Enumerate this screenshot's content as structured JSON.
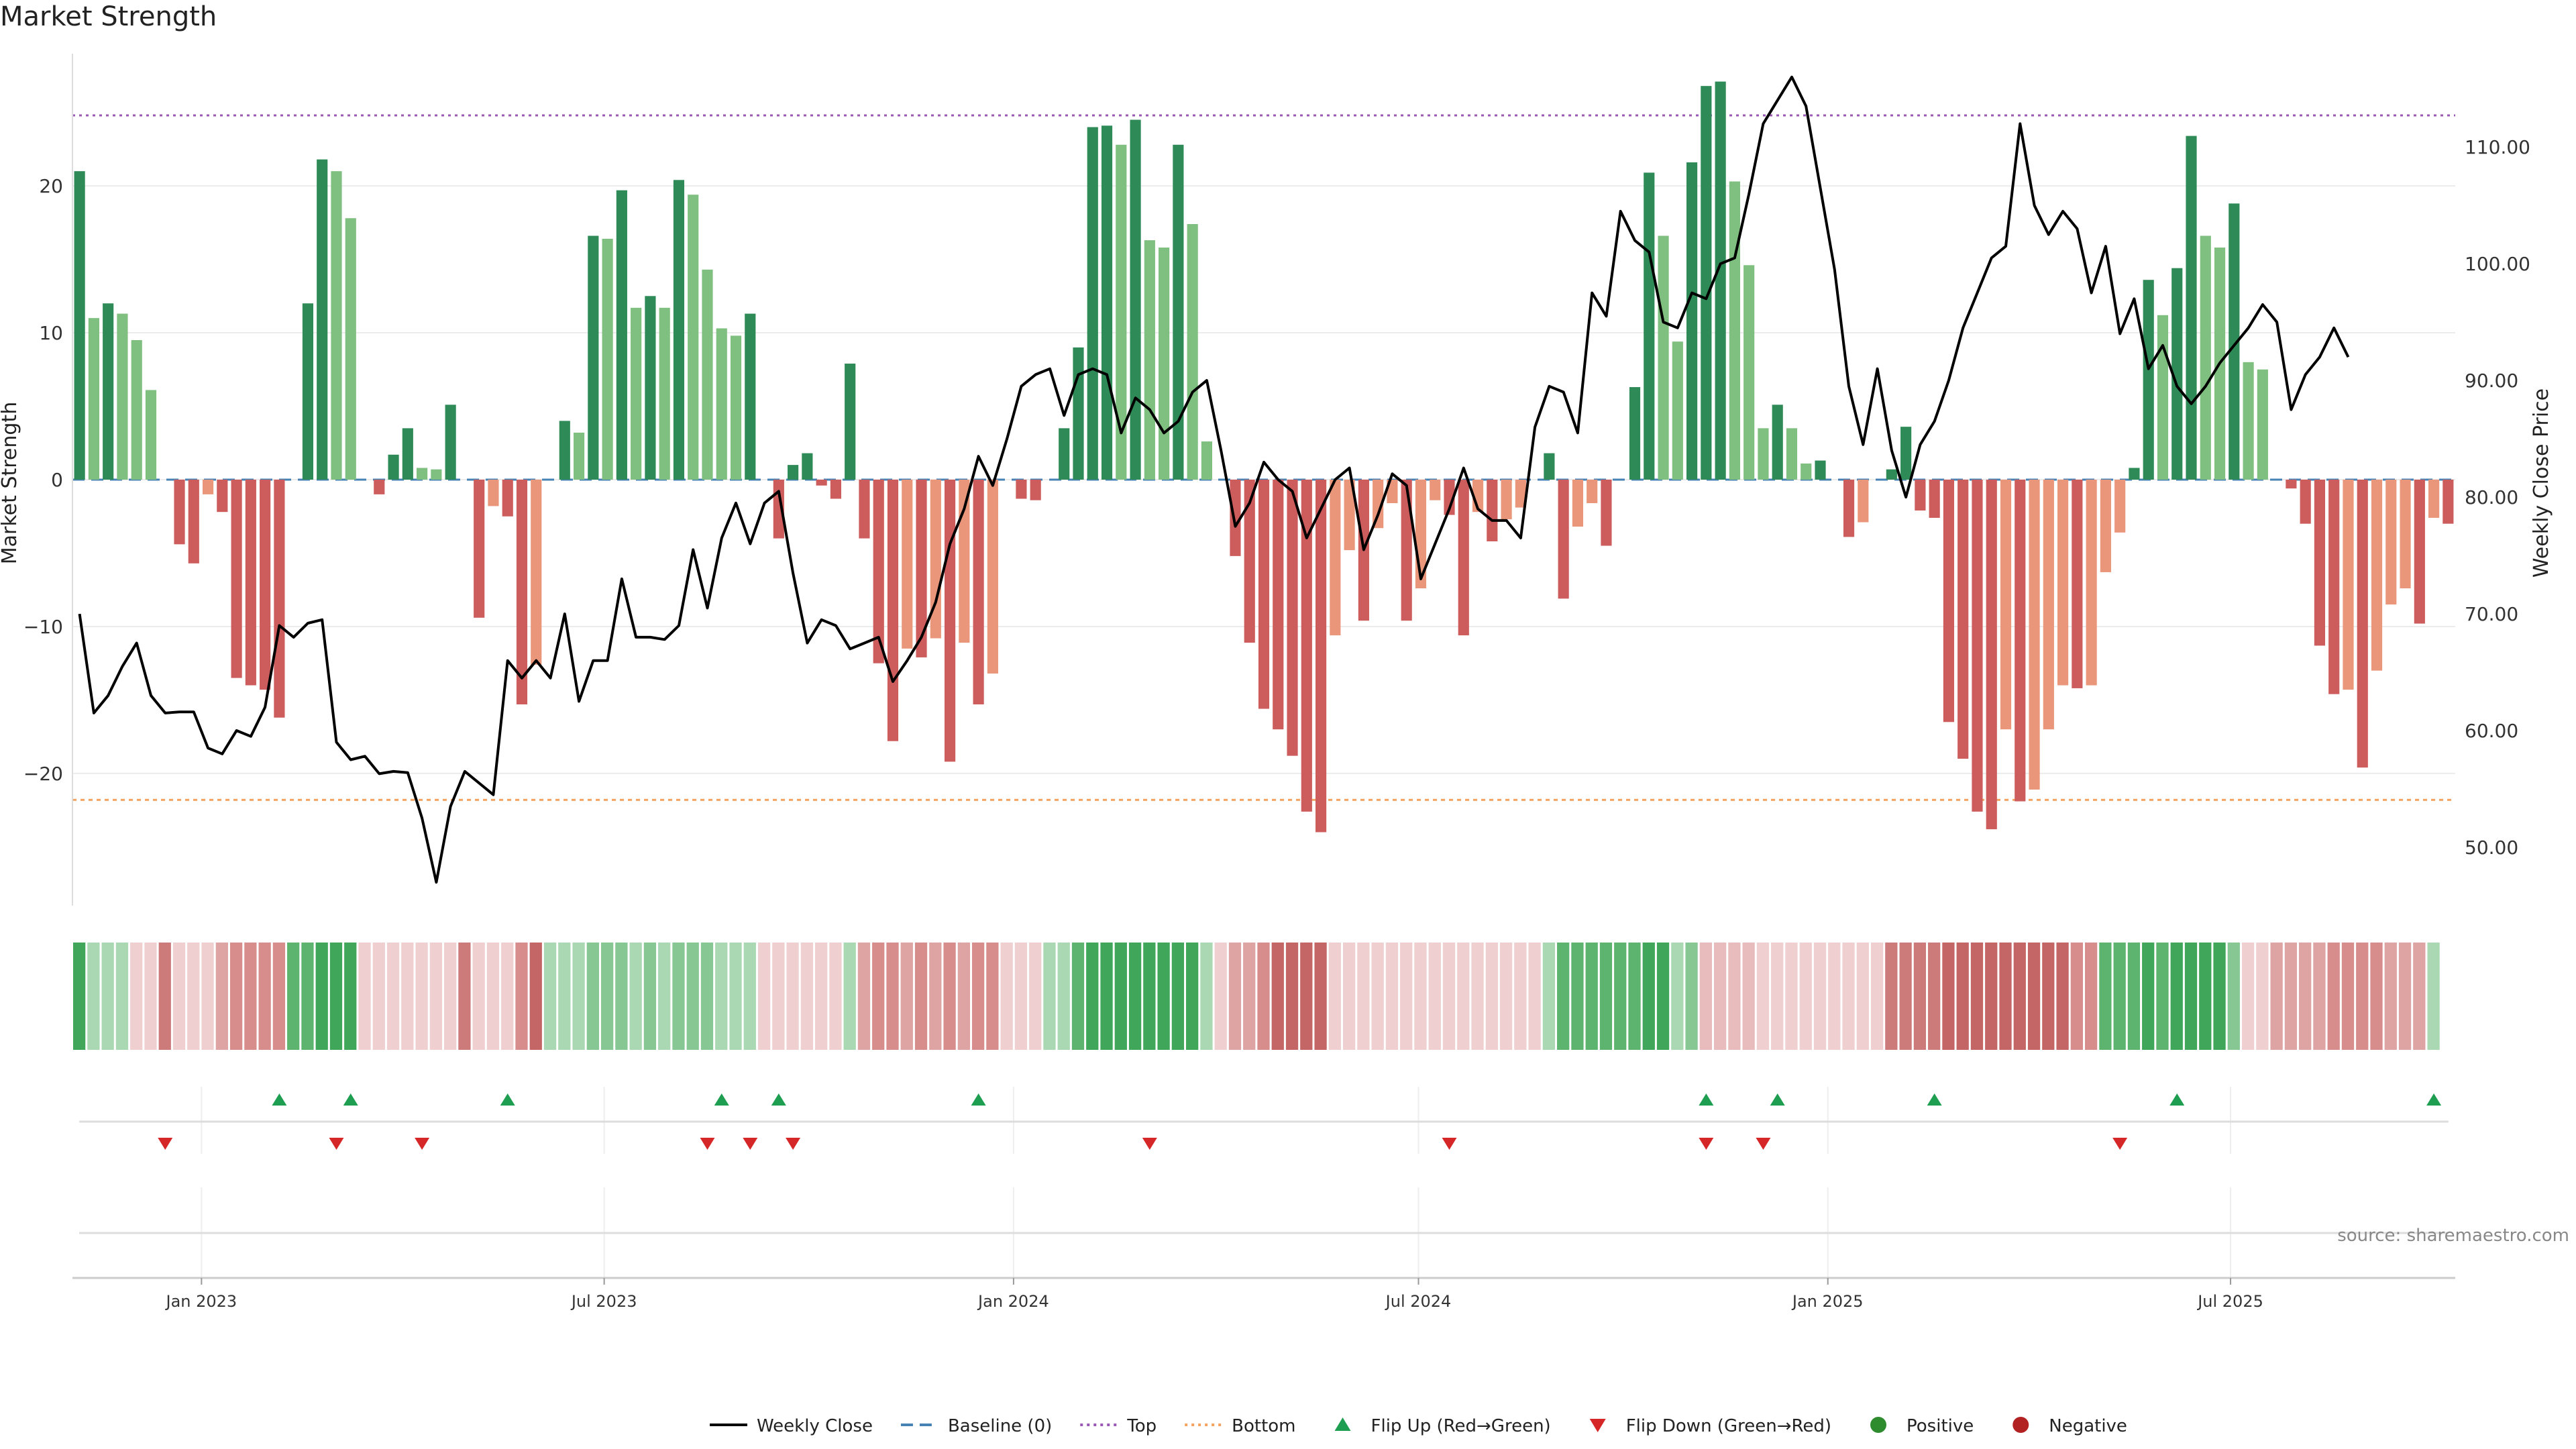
{
  "title": "Market Strength",
  "source": "source: sharemaestro.com",
  "colors": {
    "strong_green": "#2e8b57",
    "light_green": "#7fbf7f",
    "strong_red": "#cd5c5c",
    "light_red": "#e9967a",
    "top_line": "#9b59b6",
    "bottom_line": "#f4a460",
    "baseline": "#4682b4",
    "price_line": "#000000",
    "flip_up": "#1e9e50",
    "flip_down": "#d62728",
    "positive": "#2e8b2e",
    "negative": "#b22222"
  },
  "legend": [
    {
      "label": "Weekly Close",
      "kind": "line",
      "color": "#000000"
    },
    {
      "label": "Baseline (0)",
      "kind": "dash",
      "color": "#4682b4"
    },
    {
      "label": "Top",
      "kind": "dot",
      "color": "#9b59b6"
    },
    {
      "label": "Bottom",
      "kind": "dot",
      "color": "#f4a460"
    },
    {
      "label": "Flip Up (Red→Green)",
      "kind": "tri-up",
      "color": "#1e9e50"
    },
    {
      "label": "Flip Down (Green→Red)",
      "kind": "tri-down",
      "color": "#d62728"
    },
    {
      "label": "Positive",
      "kind": "dot-fill",
      "color": "#2e8b2e"
    },
    {
      "label": "Negative",
      "kind": "dot-fill",
      "color": "#b22222"
    }
  ],
  "chart_data": {
    "type": "bar",
    "title": "Market Strength",
    "ylabel": "Market Strength",
    "y2label": "Weekly Close Price",
    "ylim": [
      -29,
      29
    ],
    "y2lim": [
      45,
      118
    ],
    "yticks": [
      -20,
      -10,
      0,
      10,
      20
    ],
    "y2ticks": [
      50,
      60,
      70,
      80,
      90,
      100,
      110
    ],
    "y2tick_labels": [
      "50.00",
      "60.00",
      "70.00",
      "80.00",
      "90.00",
      "100.00",
      "110.00"
    ],
    "x_start": "2022-11-04",
    "x_end": "2025-10-10",
    "xticks": [
      {
        "date": "2023-01-01",
        "label": "Jan 2023"
      },
      {
        "date": "2023-07-01",
        "label": "Jul 2023"
      },
      {
        "date": "2024-01-01",
        "label": "Jan 2024"
      },
      {
        "date": "2024-07-01",
        "label": "Jul 2024"
      },
      {
        "date": "2025-01-01",
        "label": "Jan 2025"
      },
      {
        "date": "2025-07-01",
        "label": "Jul 2025"
      }
    ],
    "top_level": 24.8,
    "bottom_level": -21.8,
    "strength": [
      21,
      11,
      12,
      11.3,
      9.5,
      6.1,
      0,
      -4.4,
      -5.7,
      -1,
      -2.2,
      -13.5,
      -14,
      -14.3,
      -16.2,
      0,
      12,
      21.8,
      21,
      17.8,
      0,
      -1,
      1.7,
      3.5,
      0.8,
      0.7,
      5.1,
      0,
      -9.4,
      -1.8,
      -2.5,
      -15.3,
      -12.6,
      0,
      4,
      3.2,
      16.6,
      16.4,
      19.7,
      11.7,
      12.5,
      11.7,
      20.4,
      19.4,
      14.3,
      10.3,
      9.8,
      11.3,
      0,
      -4,
      1,
      1.8,
      -0.4,
      -1.3,
      7.9,
      -4,
      -12.5,
      -17.8,
      -11.5,
      -12.1,
      -10.8,
      -19.2,
      -11.1,
      -15.3,
      -13.2,
      0,
      -1.3,
      -1.4,
      0,
      3.5,
      9,
      24,
      24.1,
      22.8,
      24.5,
      16.3,
      15.8,
      22.8,
      17.4,
      2.6,
      0,
      -5.2,
      -11.1,
      -15.6,
      -17,
      -18.8,
      -22.6,
      -24,
      -10.6,
      -4.8,
      -9.6,
      -3.3,
      -1.6,
      -9.6,
      -7.4,
      -1.4,
      -2.4,
      -10.6,
      -2.2,
      -4.2,
      -2.7,
      -1.9,
      0,
      1.8,
      -8.1,
      -3.2,
      -1.6,
      -4.5,
      0,
      6.3,
      20.9,
      16.6,
      9.4,
      21.6,
      26.8,
      27.1,
      20.3,
      14.6,
      3.5,
      5.1,
      3.5,
      1.1,
      1.3,
      0,
      -3.9,
      -2.9,
      0,
      0.7,
      3.6,
      -2.1,
      -2.6,
      -16.5,
      -19,
      -22.6,
      -23.8,
      -17,
      -21.9,
      -21.1,
      -17,
      -14,
      -14.2,
      -14,
      -6.3,
      -3.6,
      0.8,
      13.6,
      11.2,
      14.4,
      23.4,
      16.6,
      15.8,
      18.8,
      8,
      7.5,
      0,
      -0.6,
      -3,
      -11.3,
      -14.6,
      -14.3,
      -19.6,
      -13,
      -8.5,
      -7.4,
      -9.8,
      -2.6,
      -3
    ],
    "price": [
      70,
      61.5,
      63,
      65.5,
      67.5,
      63,
      61.5,
      61.6,
      61.6,
      58.5,
      58,
      60,
      59.5,
      62,
      69,
      68,
      69.2,
      69.5,
      59,
      57.5,
      57.8,
      56.3,
      56.5,
      56.4,
      52.5,
      47,
      53.5,
      56.5,
      55.5,
      54.5,
      66,
      64.5,
      66,
      64.5,
      70,
      62.5,
      66,
      66,
      73,
      68,
      68,
      67.8,
      69,
      75.5,
      70.5,
      76.5,
      79.5,
      76,
      79.5,
      80.5,
      73.5,
      67.5,
      69.5,
      69,
      67,
      67.5,
      68,
      64.2,
      66,
      68,
      71,
      76,
      79,
      83.5,
      81,
      85,
      89.5,
      90.5,
      91,
      87,
      90.5,
      91,
      90.5,
      85.5,
      88.5,
      87.5,
      85.5,
      86.5,
      89,
      90,
      84,
      77.5,
      79.5,
      83,
      81.5,
      80.5,
      76.5,
      79,
      81.5,
      82.5,
      75.5,
      78.5,
      82,
      81,
      73,
      76,
      79,
      82.5,
      79,
      78,
      78,
      76.5,
      86,
      89.5,
      89,
      85.5,
      97.5,
      95.5,
      104.5,
      102,
      101,
      95,
      94.5,
      97.5,
      97,
      100,
      100.5,
      106,
      112,
      114,
      116,
      113.5,
      106.5,
      99.5,
      89.5,
      84.5,
      91,
      84,
      80,
      84.5,
      86.5,
      90,
      94.5,
      97.5,
      100.5,
      101.5,
      112,
      105,
      102.5,
      104.5,
      103,
      97.5,
      101.5,
      94,
      97,
      91,
      93,
      89.5,
      88,
      89.5,
      91.5,
      93,
      94.5,
      96.5,
      95,
      87.5,
      90.5,
      92,
      94.5,
      92
    ],
    "heat": [
      "G",
      "g",
      "g",
      "g",
      "p",
      "p",
      "R",
      "p",
      "p",
      "p",
      "r",
      "r",
      "r",
      "r",
      "r",
      "G",
      "G",
      "G",
      "G",
      "G",
      "p",
      "p",
      "p",
      "p",
      "p",
      "p",
      "p",
      "R",
      "p",
      "p",
      "p",
      "r",
      "R",
      "g",
      "g",
      "g",
      "g",
      "g",
      "g",
      "g",
      "g",
      "g",
      "g",
      "g",
      "g",
      "g",
      "g",
      "g",
      "p",
      "p",
      "p",
      "p",
      "p",
      "p",
      "g",
      "r",
      "r",
      "r",
      "r",
      "r",
      "r",
      "r",
      "r",
      "r",
      "r",
      "p",
      "p",
      "p",
      "g",
      "g",
      "G",
      "G",
      "G",
      "G",
      "G",
      "G",
      "G",
      "G",
      "G",
      "g",
      "p",
      "r",
      "r",
      "r",
      "R",
      "R",
      "R",
      "R",
      "p",
      "p",
      "p",
      "p",
      "p",
      "p",
      "p",
      "p",
      "p",
      "p",
      "p",
      "p",
      "p",
      "p",
      "p",
      "g",
      "G",
      "G",
      "G",
      "G",
      "G",
      "G",
      "G",
      "G",
      "g",
      "g",
      "p",
      "p",
      "p",
      "p",
      "p",
      "p",
      "p",
      "p",
      "p",
      "p",
      "p",
      "p",
      "p",
      "R",
      "R",
      "R",
      "R",
      "R",
      "R",
      "R",
      "R",
      "R",
      "R",
      "R",
      "R",
      "R",
      "r",
      "r",
      "G",
      "G",
      "G",
      "G",
      "G",
      "G",
      "G",
      "G",
      "G",
      "g",
      "p",
      "p",
      "r",
      "r",
      "r",
      "r",
      "r",
      "r",
      "r",
      "r",
      "r",
      "r",
      "r",
      "g"
    ],
    "flip_up_weeks": [
      14,
      19,
      30,
      45,
      49,
      63,
      114,
      119,
      130,
      147,
      165
    ],
    "flip_down_weeks": [
      6,
      18,
      24,
      44,
      47,
      50,
      75,
      96,
      114,
      118,
      143
    ]
  }
}
